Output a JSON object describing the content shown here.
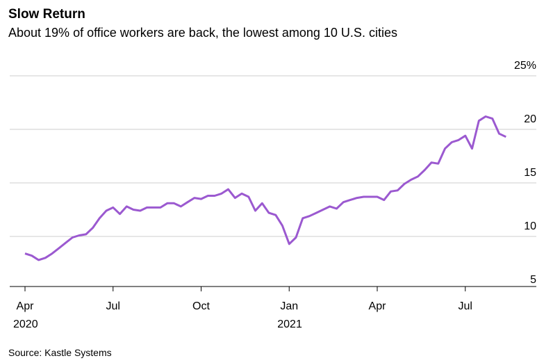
{
  "chart_data": {
    "type": "line",
    "title": "Slow Return",
    "subtitle": "About 19% of office workers are back, the lowest among 10 U.S. cities",
    "source": "Source: Kastle Systems",
    "categories": [
      "Apr 2020",
      null,
      null,
      null,
      null,
      null,
      null,
      null,
      null,
      null,
      null,
      null,
      null,
      "Jul",
      null,
      null,
      null,
      null,
      null,
      null,
      null,
      null,
      null,
      null,
      null,
      null,
      "Oct",
      null,
      null,
      null,
      null,
      null,
      null,
      null,
      null,
      null,
      null,
      null,
      null,
      "Jan 2021",
      null,
      null,
      null,
      null,
      null,
      null,
      null,
      null,
      null,
      null,
      null,
      null,
      "Apr",
      null,
      null,
      null,
      null,
      null,
      null,
      null,
      null,
      null,
      null,
      null,
      null,
      "Jul",
      null,
      null,
      null,
      null,
      null,
      null
    ],
    "series": [
      {
        "color": "#9b59d0",
        "values": [
          8.4,
          8.2,
          7.8,
          8.0,
          8.4,
          8.9,
          9.4,
          9.9,
          10.1,
          10.2,
          10.8,
          11.7,
          12.4,
          12.7,
          12.1,
          12.8,
          12.5,
          12.4,
          12.7,
          12.7,
          12.7,
          13.1,
          13.1,
          12.8,
          13.2,
          13.6,
          13.5,
          13.8,
          13.8,
          14.0,
          14.4,
          13.6,
          14.0,
          13.7,
          12.4,
          13.1,
          12.2,
          12.0,
          11.0,
          9.3,
          9.9,
          11.7,
          11.9,
          12.2,
          12.5,
          12.8,
          12.6,
          13.2,
          13.4,
          13.6,
          13.7,
          13.7,
          13.7,
          13.4,
          14.2,
          14.3,
          14.9,
          15.3,
          15.6,
          16.2,
          16.9,
          16.8,
          18.2,
          18.8,
          19.0,
          19.4,
          18.2,
          20.8,
          21.2,
          21.0,
          19.6,
          19.3
        ]
      }
    ],
    "ylim": [
      5,
      25
    ],
    "yticks": [
      5,
      10,
      15,
      20,
      {
        "value": 25,
        "label": "25%"
      }
    ],
    "grid": true
  }
}
